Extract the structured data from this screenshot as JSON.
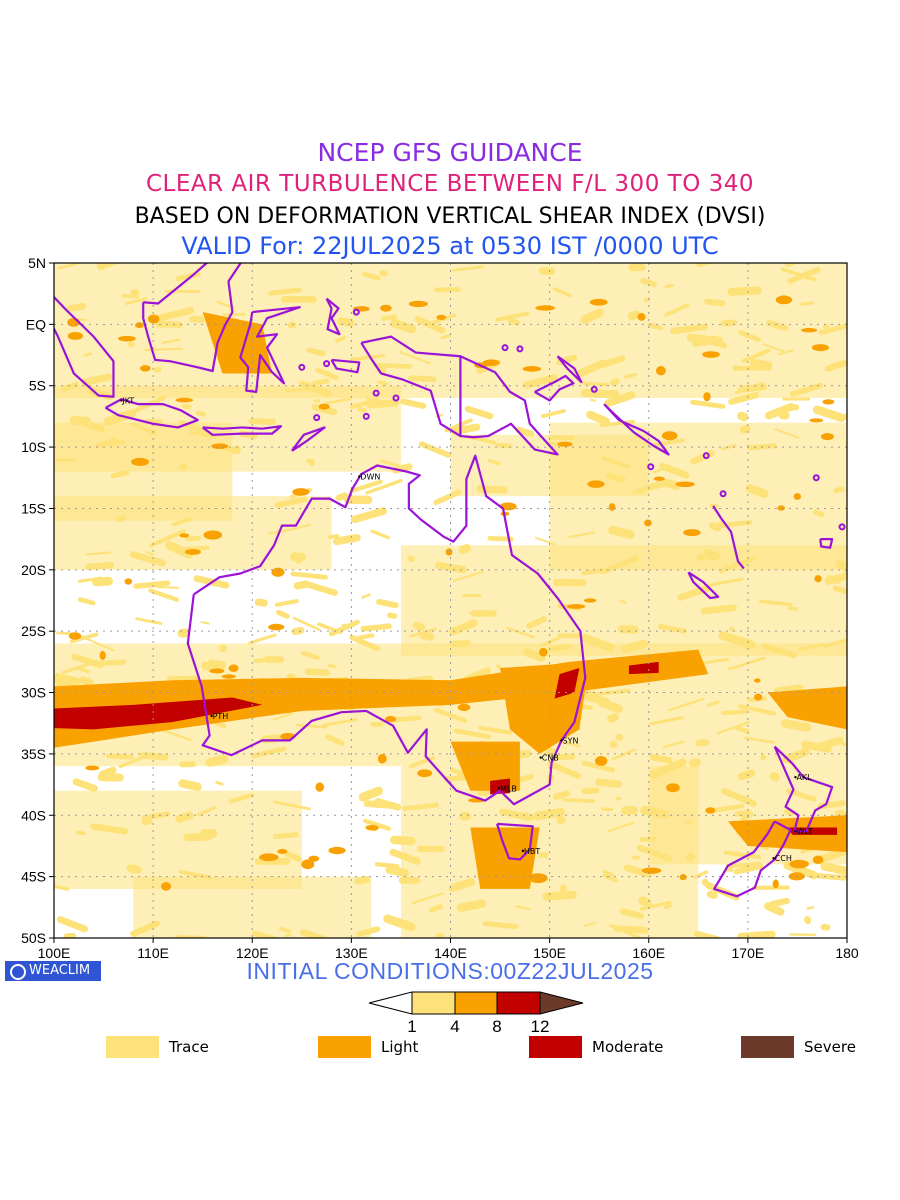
{
  "titles": {
    "line1": "NCEP GFS GUIDANCE",
    "line2": "CLEAR AIR TURBULENCE BETWEEN F/L 300 TO 340",
    "line3": "BASED ON DEFORMATION VERTICAL SHEAR INDEX (DVSI)",
    "line4": "VALID For: 22JUL2025 at 0530 IST /0000 UTC"
  },
  "initial_conditions": "INITIAL CONDITIONS:00Z22JUL2025",
  "logo_text": "WEACLIM",
  "map": {
    "lon_range": [
      100,
      180
    ],
    "lat_range": [
      -50,
      5
    ],
    "y_ticks": [
      "5N",
      "EQ",
      "5S",
      "10S",
      "15S",
      "20S",
      "25S",
      "30S",
      "35S",
      "40S",
      "45S",
      "50S"
    ],
    "x_ticks": [
      "100E",
      "110E",
      "120E",
      "130E",
      "140E",
      "150E",
      "160E",
      "170E",
      "180"
    ],
    "grid": "dotted",
    "colors": {
      "trace": "#fde27a",
      "light": "#f9a100",
      "moderate": "#c20000",
      "severe": "#6b3a2a",
      "coastline": "#9b12d8"
    },
    "cities": [
      {
        "label": "JKT",
        "lon": 106.8,
        "lat": -6.2
      },
      {
        "label": "DWN",
        "lon": 130.8,
        "lat": -12.4
      },
      {
        "label": "PTH",
        "lon": 115.9,
        "lat": -31.9
      },
      {
        "label": "SYN",
        "lon": 151.2,
        "lat": -33.9
      },
      {
        "label": "CNB",
        "lon": 149.1,
        "lat": -35.3
      },
      {
        "label": "MLB",
        "lon": 144.9,
        "lat": -37.8
      },
      {
        "label": "HBT",
        "lon": 147.3,
        "lat": -42.9
      },
      {
        "label": "AKL",
        "lon": 174.8,
        "lat": -36.9
      },
      {
        "label": "WLT",
        "lon": 174.8,
        "lat": -41.3
      },
      {
        "label": "CCH",
        "lon": 172.6,
        "lat": -43.5
      }
    ]
  },
  "colorbar": {
    "ticks": [
      "1",
      "4",
      "8",
      "12"
    ],
    "colors": [
      "#ffffff",
      "#fde27a",
      "#f9a100",
      "#c20000",
      "#6b3a2a"
    ]
  },
  "legend": [
    {
      "label": "Trace",
      "color": "#fde27a"
    },
    {
      "label": "Light",
      "color": "#f9a100"
    },
    {
      "label": "Moderate",
      "color": "#c20000"
    },
    {
      "label": "Severe",
      "color": "#6b3a2a"
    }
  ]
}
